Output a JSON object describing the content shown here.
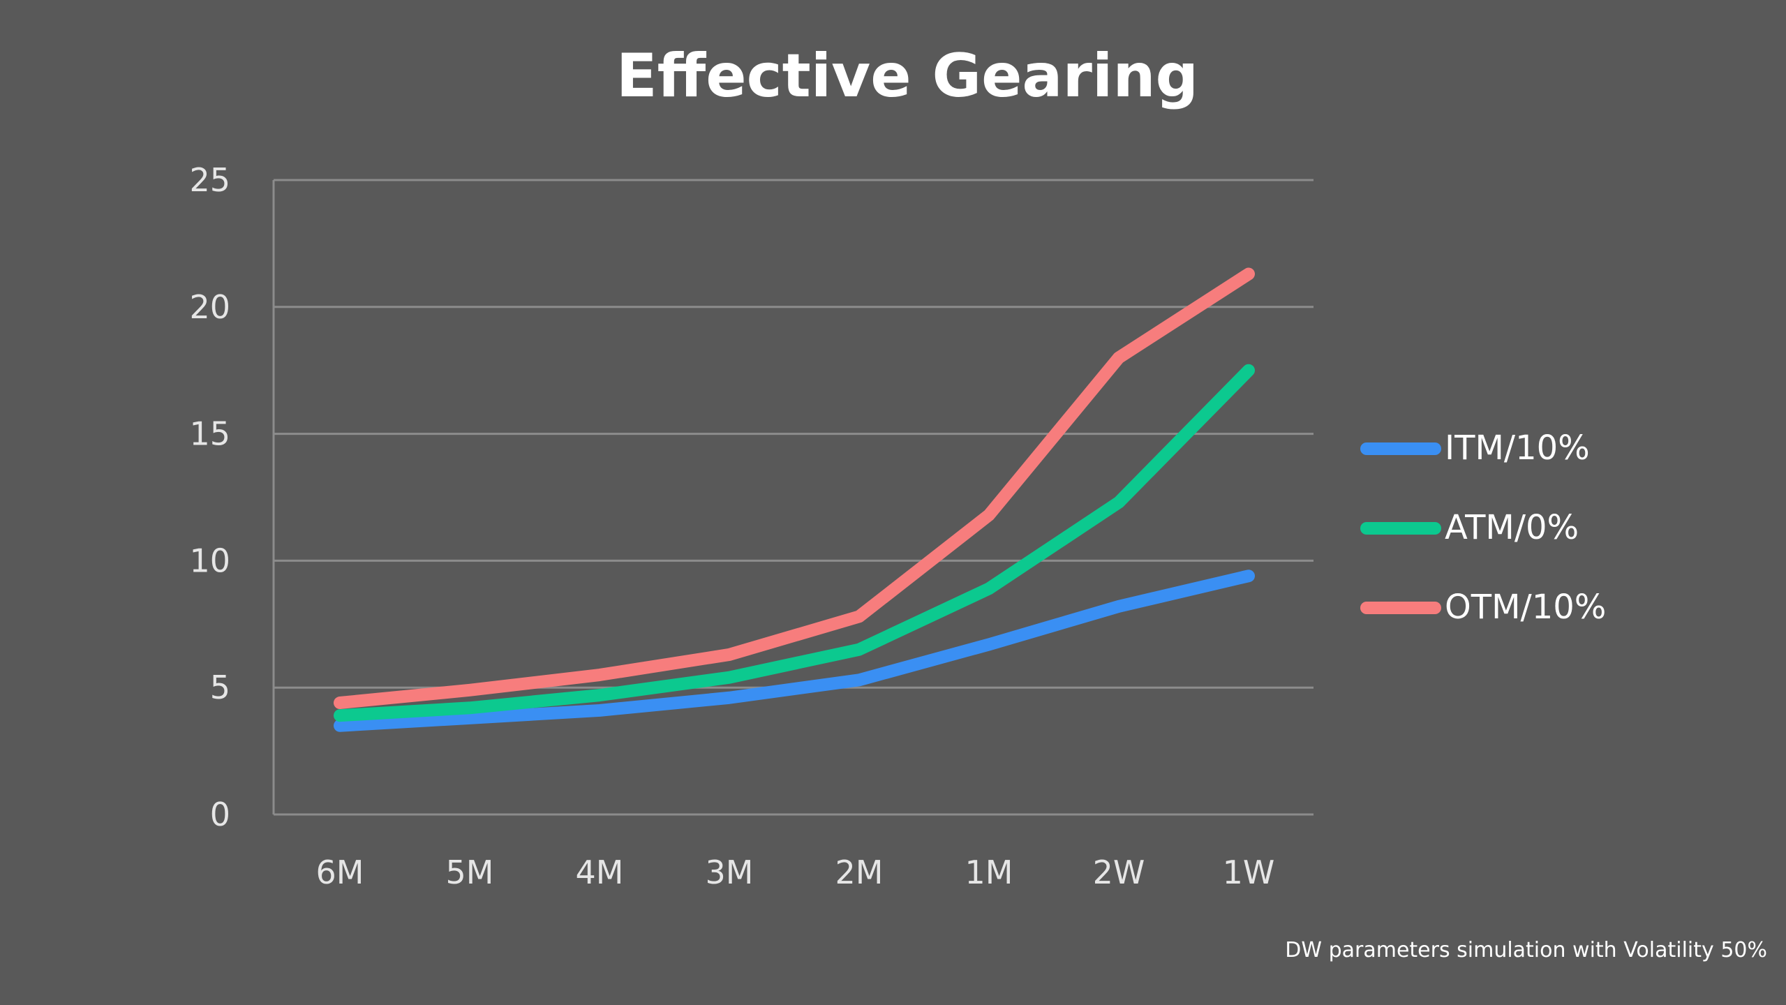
{
  "chart_data": {
    "type": "line",
    "title": "Effective Gearing",
    "xlabel": "",
    "ylabel": "",
    "categories": [
      "6M",
      "5M",
      "4M",
      "3M",
      "2M",
      "1M",
      "2W",
      "1W"
    ],
    "y_ticks": [
      "0",
      "5",
      "10",
      "15",
      "20",
      "25"
    ],
    "ylim": [
      0,
      25
    ],
    "grid": true,
    "legend_position": "right",
    "series": [
      {
        "name": "ITM/10%",
        "color": "#3a8ff3",
        "values": [
          3.5,
          3.8,
          4.1,
          4.6,
          5.3,
          6.7,
          8.2,
          9.4
        ]
      },
      {
        "name": "ATM/0%",
        "color": "#0cc98f",
        "values": [
          3.9,
          4.2,
          4.7,
          5.4,
          6.5,
          8.9,
          12.3,
          17.5
        ]
      },
      {
        "name": "OTM/10%",
        "color": "#f77d7d",
        "values": [
          4.4,
          4.9,
          5.5,
          6.3,
          7.8,
          11.8,
          18.0,
          21.3
        ]
      }
    ],
    "annotation": "DW parameters simulation with Volatility 50%"
  }
}
